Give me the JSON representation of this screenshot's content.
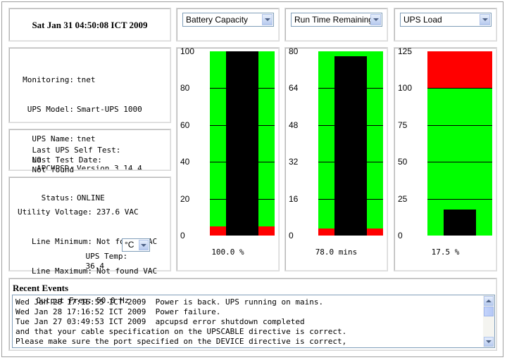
{
  "header": {
    "datetime": "Sat Jan 31 04:50:08 ICT 2009"
  },
  "status_panel": {
    "rows": [
      {
        "label": "Monitoring:",
        "value": "tnet"
      },
      {
        "label": "UPS Model:",
        "value": "Smart-UPS 1000"
      },
      {
        "label": "UPS Name:",
        "value": "tnet"
      },
      {
        "label": "APCUPSD:",
        "value": "Version 3.14.4"
      },
      {
        "label": "Status:",
        "value": "ONLINE"
      }
    ]
  },
  "selftest_panel": {
    "last_self_test_label": "Last UPS Self Test:",
    "last_self_test_value": "NO",
    "last_test_date_label": "Last Test Date:",
    "last_test_date_value": "Not found"
  },
  "power_panel": {
    "utility_voltage_label": "Utility Voltage:",
    "utility_voltage_value": "237.6 VAC",
    "line_min_label": "Line Minimum:",
    "line_min_value": "Not found VAC",
    "line_max_label": "Line Maximum:",
    "line_max_value": "Not found VAC",
    "output_freq_label": "Output Freq:",
    "output_freq_value": "50.0 Hz",
    "ups_temp_label": "UPS Temp:",
    "ups_temp_value": "36.4",
    "temp_unit_selected": "°C"
  },
  "gauges": [
    {
      "selector": "Battery Capacity",
      "ticks": [
        "100",
        "80",
        "60",
        "40",
        "20",
        "0"
      ],
      "max": 100,
      "value": 100.0,
      "value_text": "100.0 %",
      "warn_from_bottom": 5,
      "mode": "low"
    },
    {
      "selector": "Run Time Remaining",
      "ticks": [
        "80",
        "64",
        "48",
        "32",
        "16",
        "0"
      ],
      "max": 80,
      "value": 78.0,
      "value_text": "78.0 mins",
      "warn_from_bottom": 3,
      "mode": "low"
    },
    {
      "selector": "UPS Load",
      "ticks": [
        "125",
        "100",
        "75",
        "50",
        "25",
        "0"
      ],
      "max": 125,
      "value": 17.5,
      "value_text": "17.5 %",
      "warn_above": 100,
      "mode": "high"
    }
  ],
  "colors": {
    "ok": "#00ff00",
    "warn": "#ff0000",
    "bar": "#000000"
  },
  "events": {
    "title": "Recent Events",
    "lines": [
      "Wed Jan 28 17:16:55 ICT 2009  Power is back. UPS running on mains.",
      "Wed Jan 28 17:16:52 ICT 2009  Power failure.",
      "Tue Jan 27 03:49:53 ICT 2009  apcupsd error shutdown completed",
      "and that your cable specification on the UPSCABLE directive is correct.",
      "Please make sure the port specified on the DEVICE directive is correct,"
    ]
  }
}
